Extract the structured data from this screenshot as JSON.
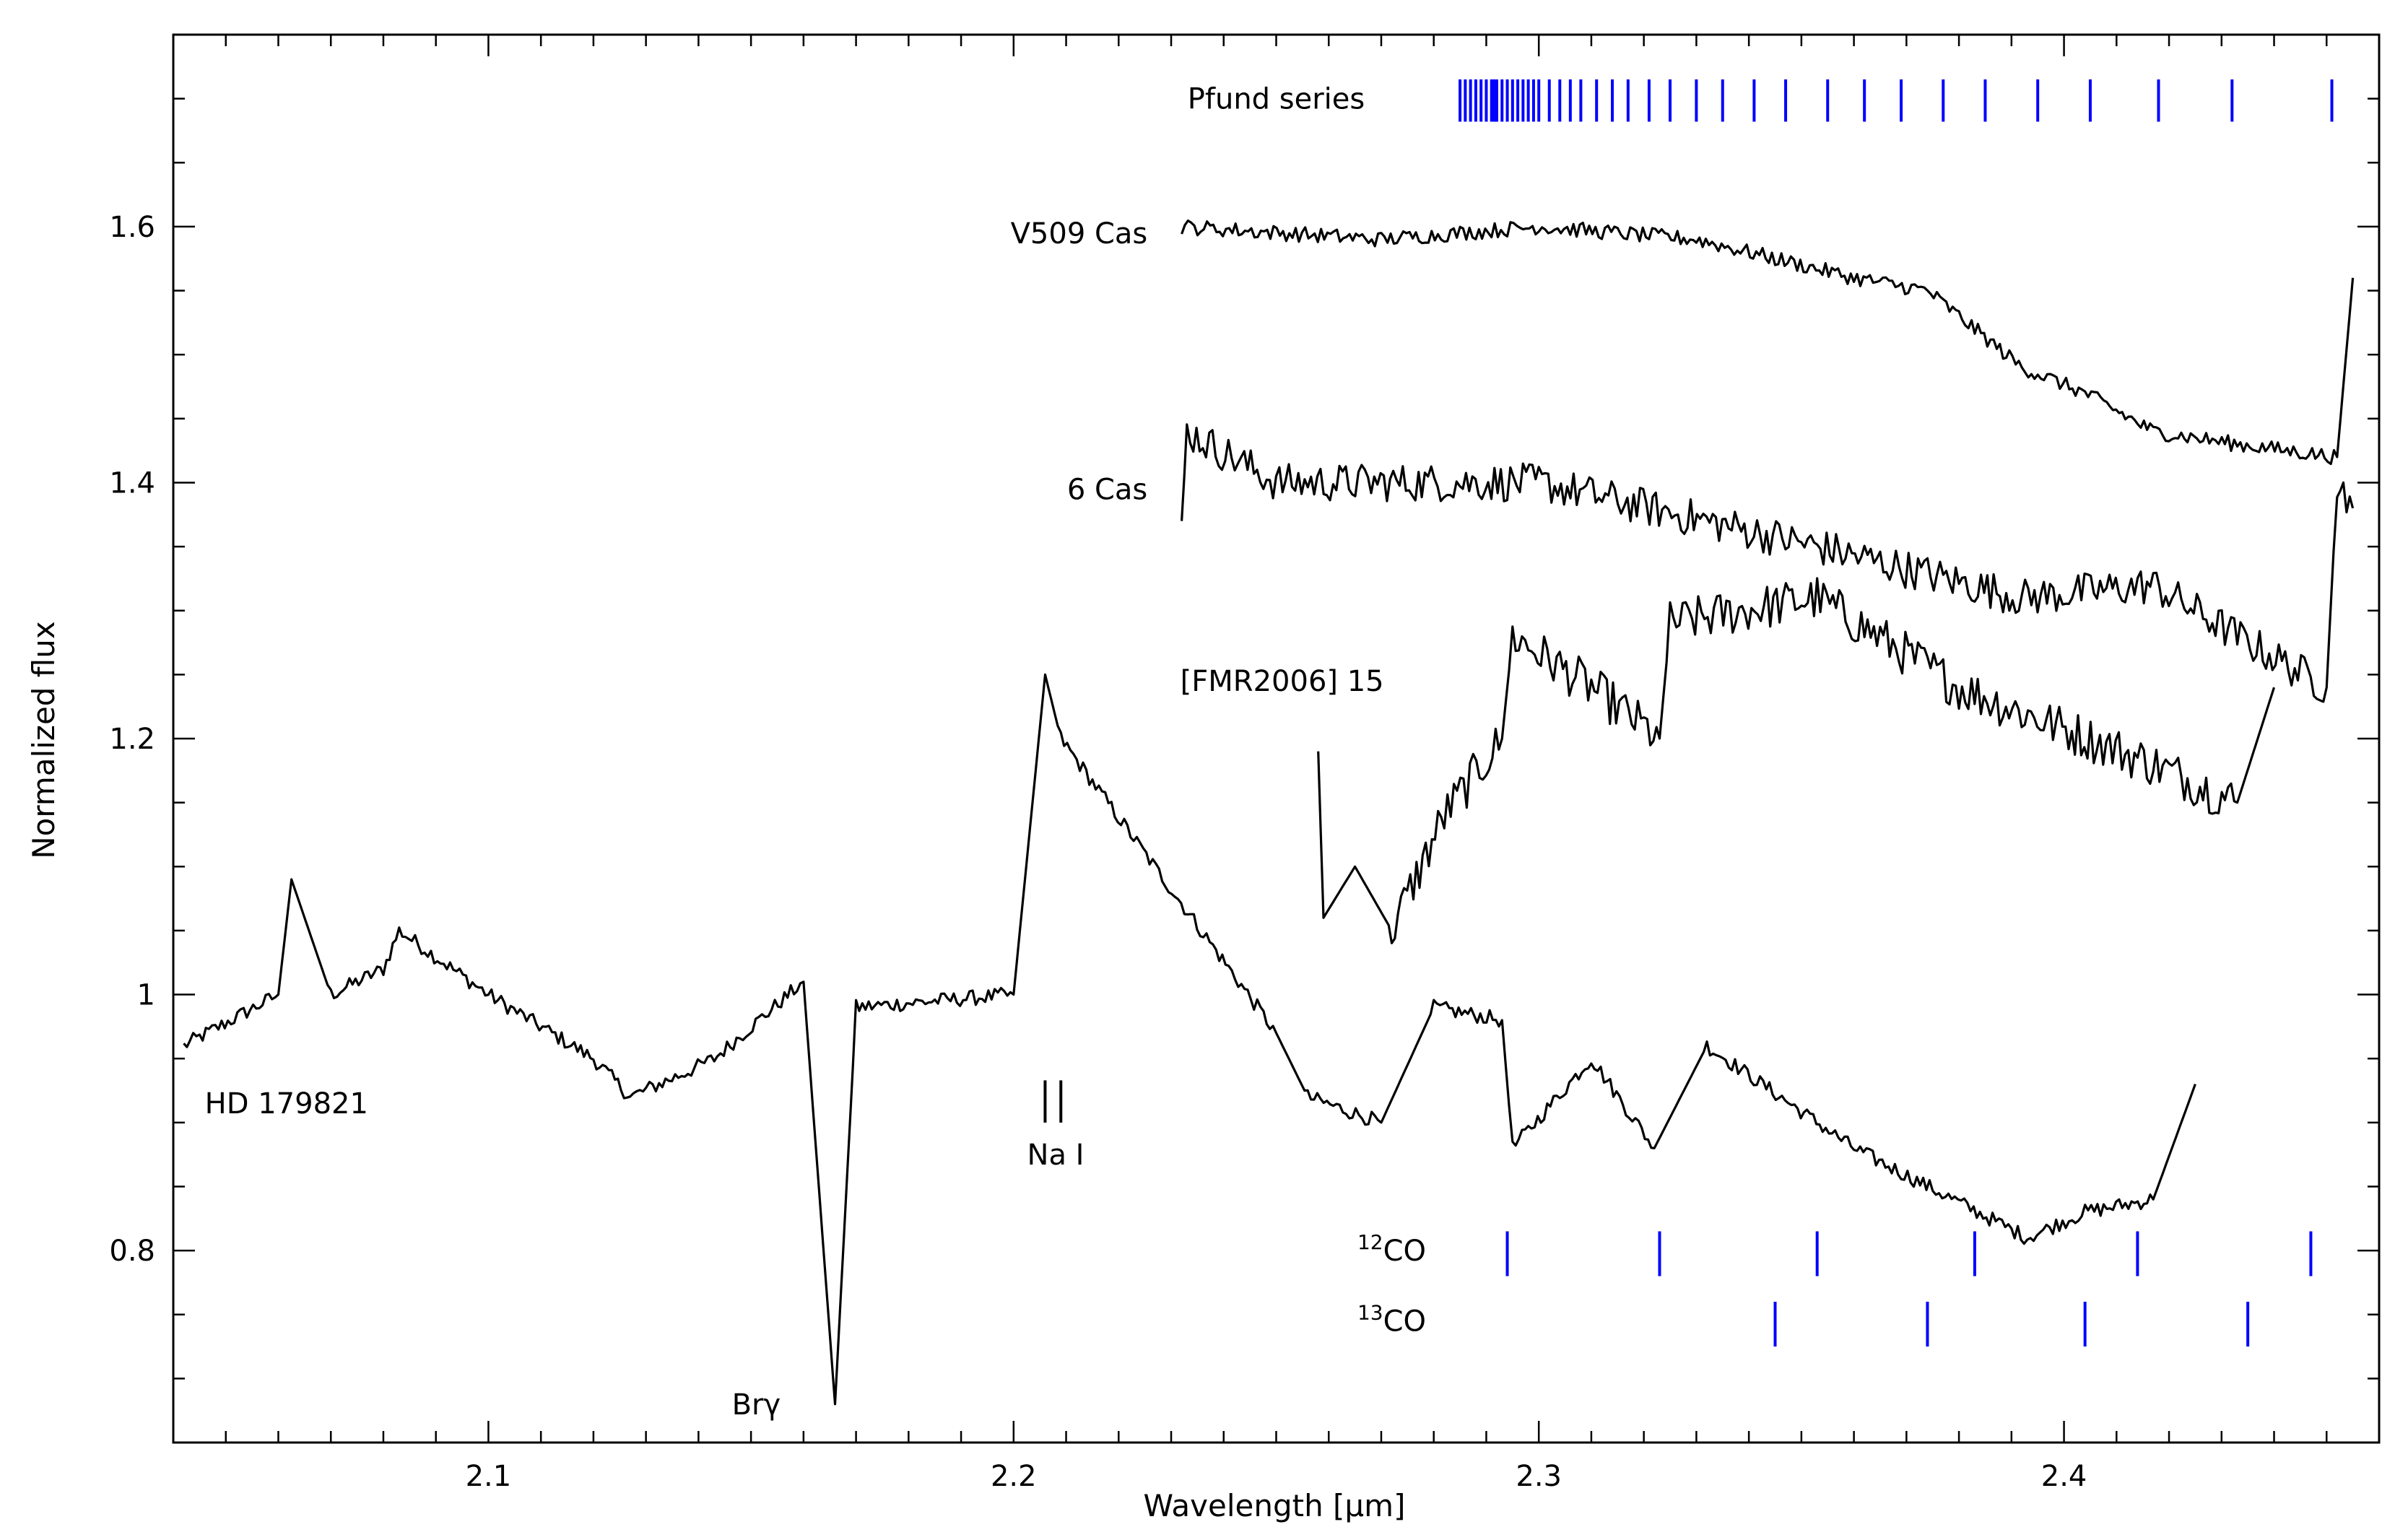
{
  "chart_data": {
    "type": "line",
    "xlabel": "Wavelength [μm]",
    "ylabel": "Normalized flux",
    "xlim": [
      2.04,
      2.46
    ],
    "ylim": [
      0.65,
      1.75
    ],
    "x_ticks": [
      {
        "value": 2.1,
        "label": "2.1"
      },
      {
        "value": 2.2,
        "label": "2.2"
      },
      {
        "value": 2.3,
        "label": "2.3"
      },
      {
        "value": 2.4,
        "label": "2.4"
      }
    ],
    "y_ticks": [
      {
        "value": 0.8,
        "label": "0.8"
      },
      {
        "value": 1.0,
        "label": "1"
      },
      {
        "value": 1.2,
        "label": "1.2"
      },
      {
        "value": 1.4,
        "label": "1.4"
      },
      {
        "value": 1.6,
        "label": "1.6"
      }
    ],
    "grid": false,
    "series": [
      {
        "name": "HD 179821",
        "color": "#000000",
        "x": [
          2.042,
          2.06,
          2.0625,
          2.07,
          2.08,
          2.083,
          2.1,
          2.12,
          2.127,
          2.138,
          2.143,
          2.16,
          2.166,
          2.17,
          2.2,
          2.206,
          2.209,
          2.25,
          2.256,
          2.27,
          2.28,
          2.293,
          2.295,
          2.31,
          2.322,
          2.332,
          2.36,
          2.393,
          2.404,
          2.417,
          2.425
        ],
        "y": [
          0.96,
          1.0,
          1.09,
          1.0,
          1.02,
          1.05,
          1.0,
          0.95,
          0.92,
          0.94,
          0.95,
          1.01,
          0.68,
          0.99,
          1.0,
          1.25,
          1.2,
          0.97,
          0.92,
          0.9,
          0.99,
          0.98,
          0.88,
          0.95,
          0.88,
          0.96,
          0.88,
          0.81,
          0.83,
          0.84,
          0.93
        ],
        "label": "HD 179821"
      },
      {
        "name": "[FMR2006] 15",
        "color": "#000000",
        "x": [
          2.258,
          2.259,
          2.265,
          2.272,
          2.282,
          2.293,
          2.295,
          2.31,
          2.323,
          2.325,
          2.353,
          2.38,
          2.417,
          2.433,
          2.44
        ],
        "y": [
          1.19,
          1.06,
          1.1,
          1.05,
          1.14,
          1.2,
          1.28,
          1.24,
          1.2,
          1.29,
          1.31,
          1.24,
          1.18,
          1.15,
          1.24
        ],
        "label": "[FMR2006] 15"
      },
      {
        "name": "6 Cas",
        "color": "#000000",
        "x": [
          2.232,
          2.233,
          2.25,
          2.3,
          2.353,
          2.392,
          2.417,
          2.433,
          2.45,
          2.452,
          2.455
        ],
        "y": [
          1.37,
          1.44,
          1.4,
          1.4,
          1.35,
          1.31,
          1.32,
          1.28,
          1.24,
          1.4,
          1.38
        ],
        "label": "6 Cas"
      },
      {
        "name": "V509 Cas",
        "color": "#000000",
        "x": [
          2.232,
          2.27,
          2.3,
          2.33,
          2.36,
          2.374,
          2.392,
          2.404,
          2.417,
          2.433,
          2.452,
          2.455
        ],
        "y": [
          1.6,
          1.59,
          1.6,
          1.59,
          1.56,
          1.55,
          1.49,
          1.47,
          1.44,
          1.43,
          1.42,
          1.56
        ],
        "label": "V509 Cas"
      }
    ],
    "annotations": [
      {
        "text": "Pfund series",
        "x": 2.25,
        "y": 1.7
      },
      {
        "text": "Na I",
        "x": 2.208,
        "y": 0.875
      },
      {
        "text": "Brγ",
        "x": 2.151,
        "y": 0.68
      },
      {
        "text": "12CO",
        "x": 2.272,
        "y": 0.8
      },
      {
        "text": "13CO",
        "x": 2.272,
        "y": 0.745
      }
    ],
    "line_markers": {
      "pfund_series": {
        "color": "#0000ff",
        "y_range": [
          1.682,
          1.715
        ],
        "x": [
          2.285,
          2.286,
          2.287,
          2.288,
          2.289,
          2.29,
          2.291,
          2.2915,
          2.292,
          2.293,
          2.294,
          2.295,
          2.296,
          2.297,
          2.298,
          2.299,
          2.3,
          2.302,
          2.304,
          2.306,
          2.308,
          2.311,
          2.314,
          2.317,
          2.321,
          2.325,
          2.33,
          2.335,
          2.341,
          2.347,
          2.355,
          2.362,
          2.369,
          2.377,
          2.385,
          2.395,
          2.405,
          2.418,
          2.432,
          2.451
        ]
      },
      "na_i": {
        "color": "#000000",
        "x": [
          2.206,
          2.209
        ],
        "y_range": [
          0.9,
          0.933
        ]
      },
      "co12": {
        "color": "#0000ff",
        "x": [
          2.294,
          2.323,
          2.353,
          2.383,
          2.414,
          2.447
        ],
        "y_range": [
          0.78,
          0.815
        ]
      },
      "co13": {
        "color": "#0000ff",
        "x": [
          2.345,
          2.374,
          2.404,
          2.435
        ],
        "y_range": [
          0.725,
          0.76
        ]
      }
    }
  }
}
